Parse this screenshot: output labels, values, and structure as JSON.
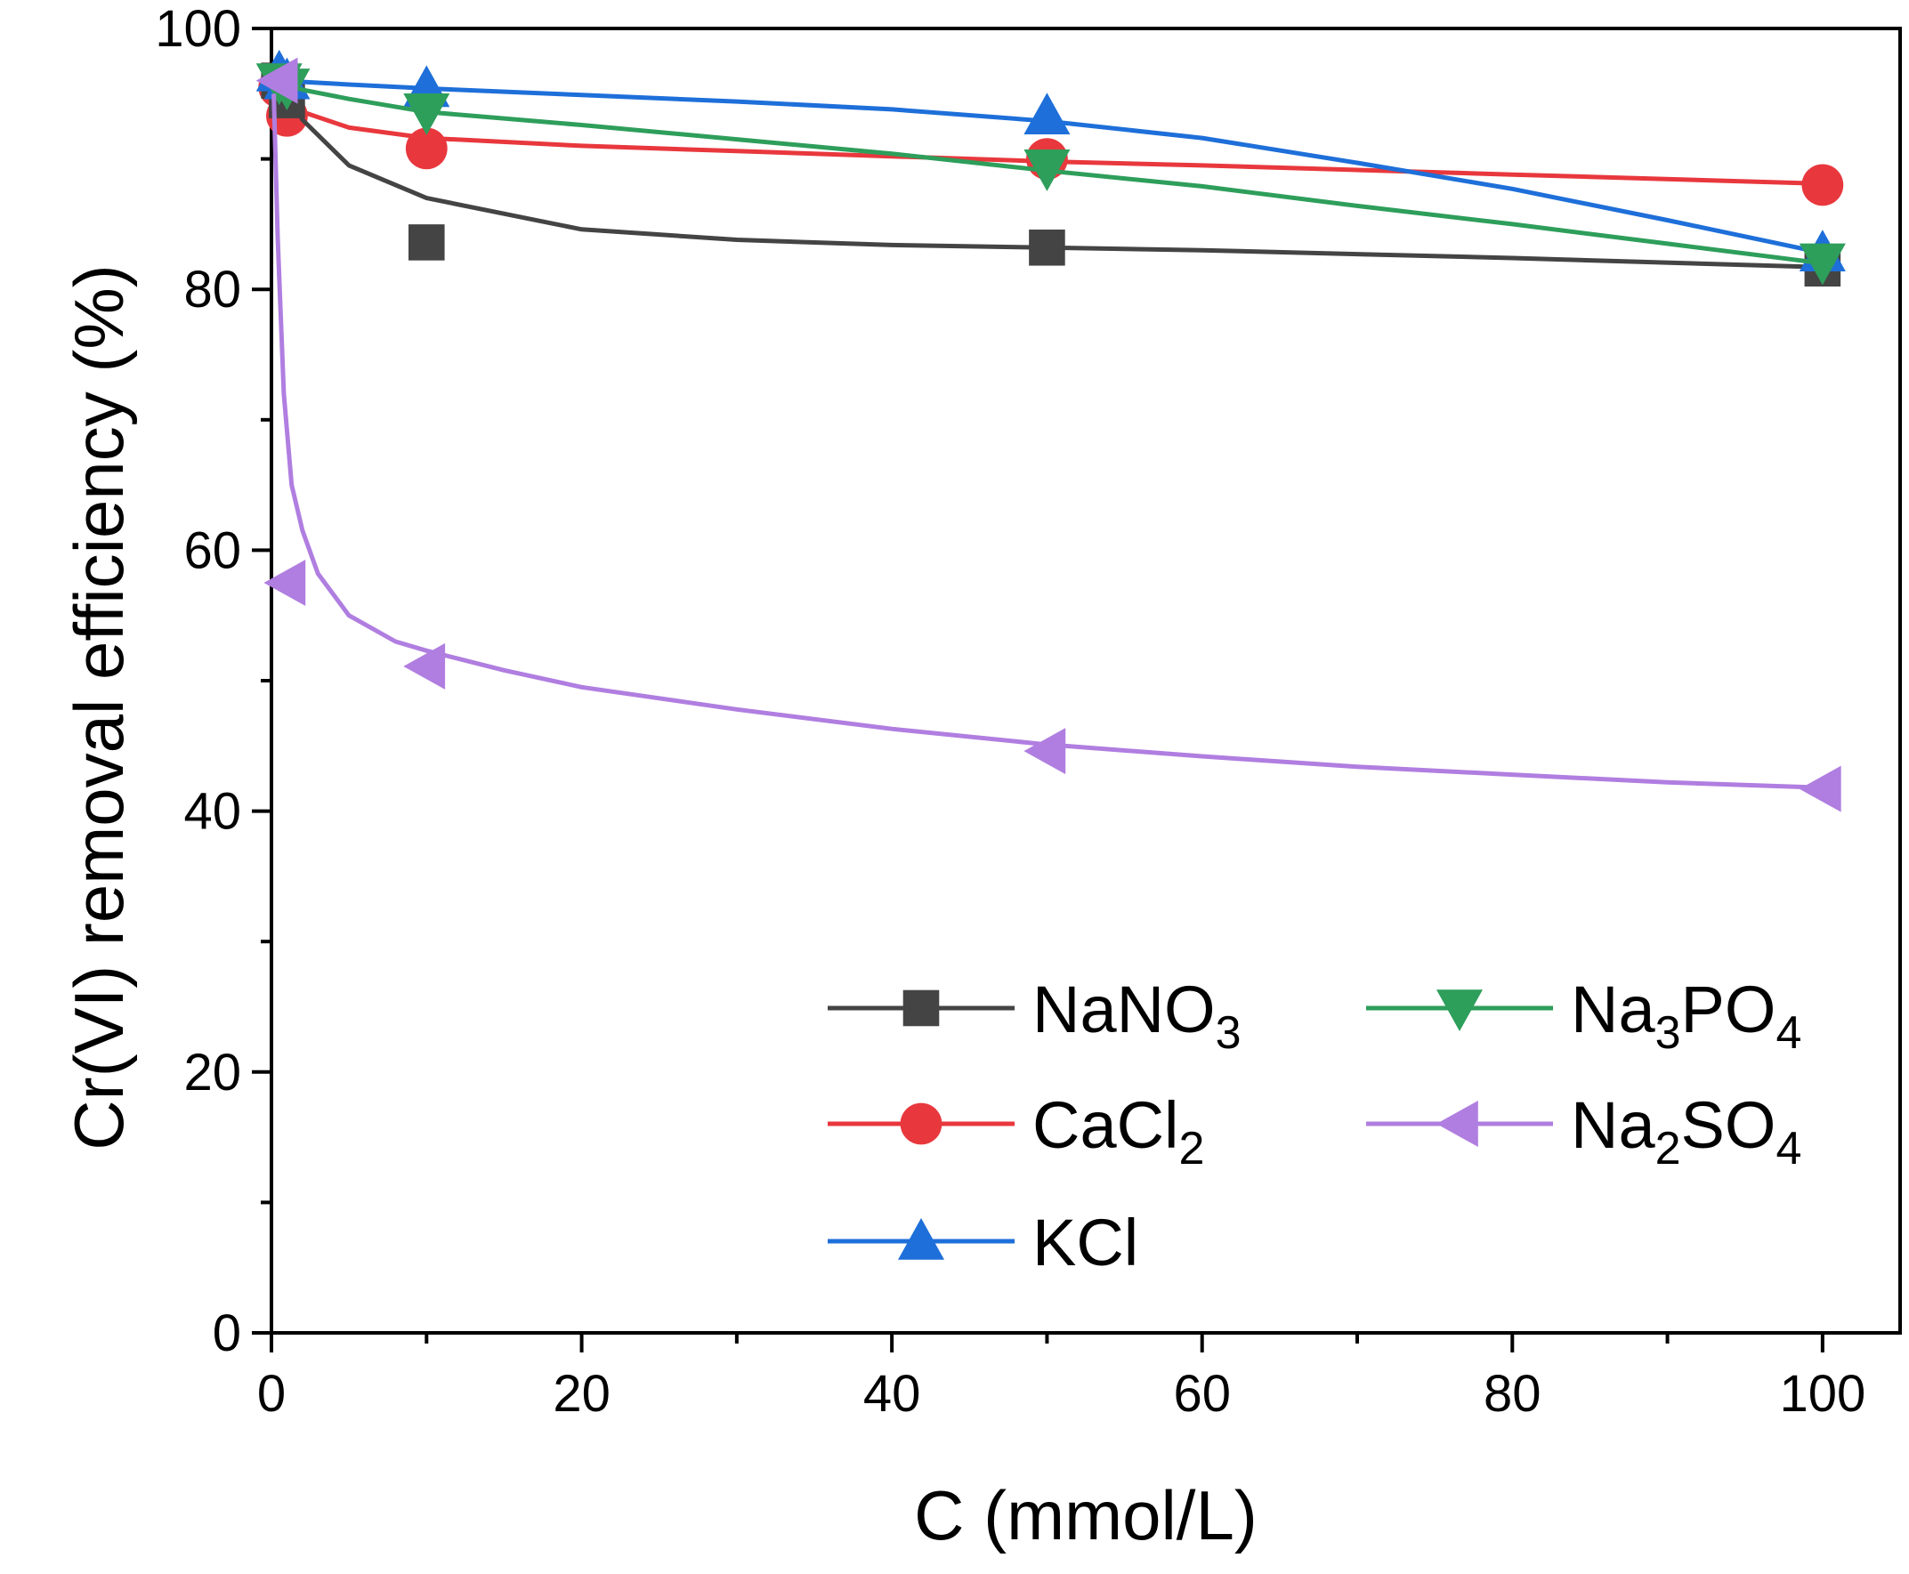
{
  "chart_data": {
    "type": "line",
    "xlabel": "C (mmol/L)",
    "ylabel": "Cr(VI) removal efficiency (%)",
    "xlim": [
      0,
      105
    ],
    "ylim": [
      0,
      100
    ],
    "xticks": [
      0,
      20,
      40,
      60,
      80,
      100
    ],
    "yticks": [
      0,
      20,
      40,
      60,
      80,
      100
    ],
    "x_minor_ticks": [
      10,
      30,
      50,
      70,
      90
    ],
    "y_minor_ticks": [
      10,
      30,
      50,
      70,
      90
    ],
    "grid": false,
    "legend_position": "bottom-right",
    "series": [
      {
        "name": "NaNO3",
        "label_main": "NaNO",
        "label_sub": "3",
        "label_tail": "",
        "marker": "square",
        "color": "#444444",
        "x": [
          0.5,
          1,
          10,
          50,
          100
        ],
        "y": [
          96.0,
          94.5,
          83.6,
          83.2,
          81.6
        ],
        "fit": [
          [
            0.5,
            96.0
          ],
          [
            2,
            93.0
          ],
          [
            5,
            89.5
          ],
          [
            10,
            87.0
          ],
          [
            20,
            84.6
          ],
          [
            30,
            83.8
          ],
          [
            40,
            83.4
          ],
          [
            50,
            83.2
          ],
          [
            60,
            83.0
          ],
          [
            80,
            82.4
          ],
          [
            100,
            81.7
          ]
        ]
      },
      {
        "name": "CaCl2",
        "label_main": "CaCl",
        "label_sub": "2",
        "label_tail": "",
        "marker": "circle",
        "color": "#e8383d",
        "x": [
          0.5,
          1,
          10,
          50,
          100
        ],
        "y": [
          95.5,
          93.3,
          90.8,
          90.0,
          88.0
        ],
        "fit": [
          [
            0.5,
            95.5
          ],
          [
            2,
            93.6
          ],
          [
            5,
            92.4
          ],
          [
            10,
            91.6
          ],
          [
            20,
            91.0
          ],
          [
            30,
            90.6
          ],
          [
            40,
            90.2
          ],
          [
            50,
            89.8
          ],
          [
            60,
            89.5
          ],
          [
            80,
            88.8
          ],
          [
            100,
            88.1
          ]
        ]
      },
      {
        "name": "KCl",
        "label_main": "KCl",
        "label_sub": "",
        "label_tail": "",
        "marker": "triangle-up",
        "color": "#1e6fd9",
        "x": [
          0.5,
          1,
          10,
          50,
          100
        ],
        "y": [
          96.6,
          96.0,
          95.4,
          93.3,
          82.8
        ],
        "fit": [
          [
            0.5,
            96.0
          ],
          [
            5,
            95.7
          ],
          [
            10,
            95.4
          ],
          [
            20,
            94.9
          ],
          [
            30,
            94.4
          ],
          [
            40,
            93.8
          ],
          [
            50,
            92.9
          ],
          [
            60,
            91.6
          ],
          [
            70,
            89.7
          ],
          [
            80,
            87.7
          ],
          [
            90,
            85.3
          ],
          [
            100,
            82.8
          ]
        ]
      },
      {
        "name": "Na3PO4",
        "label_main": "Na",
        "label_sub": "3",
        "label_tail": "PO",
        "label_sub2": "4",
        "marker": "triangle-down",
        "color": "#2e9e5b",
        "x": [
          0.5,
          1,
          10,
          50,
          100
        ],
        "y": [
          95.9,
          95.5,
          93.6,
          89.3,
          82.1
        ],
        "fit": [
          [
            0.5,
            95.8
          ],
          [
            2,
            95.3
          ],
          [
            5,
            94.6
          ],
          [
            10,
            93.6
          ],
          [
            20,
            92.6
          ],
          [
            30,
            91.5
          ],
          [
            40,
            90.4
          ],
          [
            50,
            89.1
          ],
          [
            60,
            87.9
          ],
          [
            70,
            86.4
          ],
          [
            80,
            85.0
          ],
          [
            90,
            83.5
          ],
          [
            100,
            82.0
          ]
        ]
      },
      {
        "name": "Na2SO4",
        "label_main": "Na",
        "label_sub": "2",
        "label_tail": "SO",
        "label_sub2": "4",
        "marker": "triangle-left",
        "color": "#b07ee0",
        "x": [
          0.5,
          1,
          10,
          50,
          100
        ],
        "y": [
          96.0,
          57.5,
          51.1,
          44.6,
          41.7
        ],
        "fit": [
          [
            0.15,
            95.0
          ],
          [
            0.4,
            84.0
          ],
          [
            0.8,
            72.0
          ],
          [
            1.3,
            65.0
          ],
          [
            2,
            61.5
          ],
          [
            3,
            58.2
          ],
          [
            5,
            55.0
          ],
          [
            8,
            53.0
          ],
          [
            10,
            52.3
          ],
          [
            15,
            50.8
          ],
          [
            20,
            49.5
          ],
          [
            30,
            47.8
          ],
          [
            40,
            46.3
          ],
          [
            50,
            45.1
          ],
          [
            60,
            44.2
          ],
          [
            70,
            43.4
          ],
          [
            80,
            42.8
          ],
          [
            90,
            42.2
          ],
          [
            100,
            41.8
          ]
        ]
      }
    ]
  }
}
